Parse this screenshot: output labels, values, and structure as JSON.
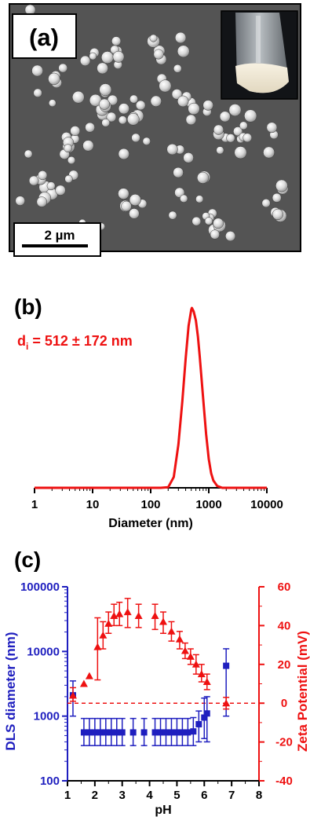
{
  "panels": {
    "a": {
      "label": "(a)",
      "scale_bar_text": "2 µm"
    },
    "b": {
      "label": "(b)"
    },
    "c": {
      "label": "(c)"
    }
  },
  "colors": {
    "red": "#ee1111",
    "blue": "#1f1fbf",
    "black": "#000000",
    "sem_background": "#545454"
  },
  "chart_data": [
    {
      "type": "line",
      "panel": "b",
      "xlabel": "Diameter (nm)",
      "ylabel": "",
      "x_scale": "log",
      "xlim": [
        1,
        10000
      ],
      "x_ticks": [
        "1",
        "10",
        "100",
        "1000",
        "10000"
      ],
      "annotation": {
        "main": "d",
        "sub": "i",
        "rest": " = 512 ± 172 nm"
      },
      "series": [
        {
          "color": "#ee1111",
          "x": [
            1,
            100,
            150,
            200,
            250,
            300,
            350,
            400,
            450,
            500,
            512,
            550,
            600,
            650,
            700,
            800,
            900,
            1000,
            1100,
            1200,
            1400,
            1700,
            2000,
            10000
          ],
          "y": [
            0,
            0,
            0,
            0.003,
            0.06,
            0.24,
            0.48,
            0.72,
            0.9,
            0.99,
            1.0,
            0.98,
            0.93,
            0.84,
            0.73,
            0.5,
            0.3,
            0.16,
            0.08,
            0.04,
            0.01,
            0,
            0,
            0
          ]
        }
      ]
    },
    {
      "type": "scatter",
      "panel": "c",
      "xlabel": "pH",
      "xlim": [
        1,
        8
      ],
      "x_ticks": [
        "1",
        "2",
        "3",
        "4",
        "5",
        "6",
        "7",
        "8"
      ],
      "y_left": {
        "label": "DLS diameter (nm)",
        "scale": "log",
        "lim": [
          100,
          100000
        ],
        "ticks": [
          "100",
          "1000",
          "10000",
          "100000"
        ]
      },
      "y_right": {
        "label": "Zeta Potential (mV)",
        "lim": [
          -40,
          60
        ],
        "ticks": [
          "-40",
          "-20",
          "0",
          "20",
          "40",
          "60"
        ]
      },
      "reference_line": {
        "axis": "right",
        "y": 0,
        "style": "dashed"
      },
      "series": [
        {
          "axis": "left",
          "marker": "square",
          "color": "#1f1fbf",
          "points": [
            {
              "x": 1.2,
              "y": 2100,
              "lo": 1000,
              "hi": 3500
            },
            {
              "x": 1.6,
              "y": 560,
              "lo": 350,
              "hi": 920
            },
            {
              "x": 1.8,
              "y": 560,
              "lo": 350,
              "hi": 920
            },
            {
              "x": 2.0,
              "y": 560,
              "lo": 350,
              "hi": 920
            },
            {
              "x": 2.2,
              "y": 560,
              "lo": 350,
              "hi": 920
            },
            {
              "x": 2.4,
              "y": 560,
              "lo": 350,
              "hi": 920
            },
            {
              "x": 2.6,
              "y": 560,
              "lo": 350,
              "hi": 920
            },
            {
              "x": 2.8,
              "y": 560,
              "lo": 350,
              "hi": 920
            },
            {
              "x": 3.0,
              "y": 560,
              "lo": 350,
              "hi": 920
            },
            {
              "x": 3.4,
              "y": 560,
              "lo": 350,
              "hi": 920
            },
            {
              "x": 3.8,
              "y": 560,
              "lo": 350,
              "hi": 920
            },
            {
              "x": 4.2,
              "y": 560,
              "lo": 350,
              "hi": 920
            },
            {
              "x": 4.4,
              "y": 560,
              "lo": 350,
              "hi": 920
            },
            {
              "x": 4.6,
              "y": 560,
              "lo": 350,
              "hi": 920
            },
            {
              "x": 4.8,
              "y": 560,
              "lo": 350,
              "hi": 920
            },
            {
              "x": 5.0,
              "y": 560,
              "lo": 350,
              "hi": 920
            },
            {
              "x": 5.2,
              "y": 560,
              "lo": 350,
              "hi": 920
            },
            {
              "x": 5.4,
              "y": 560,
              "lo": 350,
              "hi": 920
            },
            {
              "x": 5.6,
              "y": 580,
              "lo": 350,
              "hi": 950
            },
            {
              "x": 5.8,
              "y": 750,
              "lo": 400,
              "hi": 1200
            },
            {
              "x": 6.0,
              "y": 950,
              "lo": 450,
              "hi": 1900
            },
            {
              "x": 6.1,
              "y": 1100,
              "lo": 400,
              "hi": 2000
            },
            {
              "x": 6.8,
              "y": 6000,
              "lo": 1000,
              "hi": 11000
            }
          ]
        },
        {
          "axis": "right",
          "marker": "triangle",
          "color": "#ee1111",
          "points": [
            {
              "x": 1.2,
              "y": 4,
              "lo": 1,
              "hi": 8
            },
            {
              "x": 1.6,
              "y": 10,
              "lo": 10,
              "hi": 10
            },
            {
              "x": 1.8,
              "y": 14,
              "lo": 14,
              "hi": 14
            },
            {
              "x": 2.1,
              "y": 29,
              "lo": 12,
              "hi": 44
            },
            {
              "x": 2.3,
              "y": 35,
              "lo": 28,
              "hi": 42
            },
            {
              "x": 2.5,
              "y": 41,
              "lo": 36,
              "hi": 47
            },
            {
              "x": 2.7,
              "y": 45,
              "lo": 40,
              "hi": 51
            },
            {
              "x": 2.9,
              "y": 46,
              "lo": 40,
              "hi": 52
            },
            {
              "x": 3.2,
              "y": 47,
              "lo": 39,
              "hi": 54
            },
            {
              "x": 3.6,
              "y": 45,
              "lo": 39,
              "hi": 51
            },
            {
              "x": 4.2,
              "y": 45,
              "lo": 38,
              "hi": 51
            },
            {
              "x": 4.5,
              "y": 42,
              "lo": 36,
              "hi": 47
            },
            {
              "x": 4.8,
              "y": 37,
              "lo": 32,
              "hi": 42
            },
            {
              "x": 5.1,
              "y": 33,
              "lo": 28,
              "hi": 37
            },
            {
              "x": 5.3,
              "y": 27,
              "lo": 23,
              "hi": 31
            },
            {
              "x": 5.5,
              "y": 24,
              "lo": 20,
              "hi": 28
            },
            {
              "x": 5.7,
              "y": 20,
              "lo": 15,
              "hi": 25
            },
            {
              "x": 5.9,
              "y": 15,
              "lo": 11,
              "hi": 20
            },
            {
              "x": 6.1,
              "y": 11,
              "lo": 7,
              "hi": 15
            },
            {
              "x": 6.8,
              "y": 0,
              "lo": -3,
              "hi": 3
            }
          ]
        }
      ]
    }
  ]
}
